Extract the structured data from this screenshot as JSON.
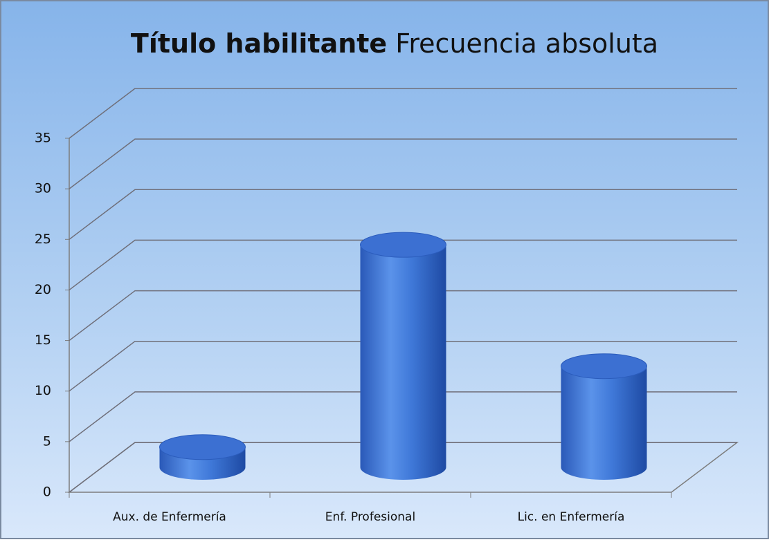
{
  "chart_data": {
    "type": "bar3d",
    "title": "Título habilitante",
    "subtitle": "Frecuencia absoluta",
    "categories": [
      "Aux. de Enfermería",
      "Enf. Profesional",
      "Lic. en Enfermería"
    ],
    "values": [
      2,
      22,
      10
    ],
    "color": "#3a6fd0",
    "ylim": [
      0,
      35
    ],
    "yticks": [
      0,
      5,
      10,
      15,
      20,
      25,
      30,
      35
    ],
    "grid": true
  }
}
